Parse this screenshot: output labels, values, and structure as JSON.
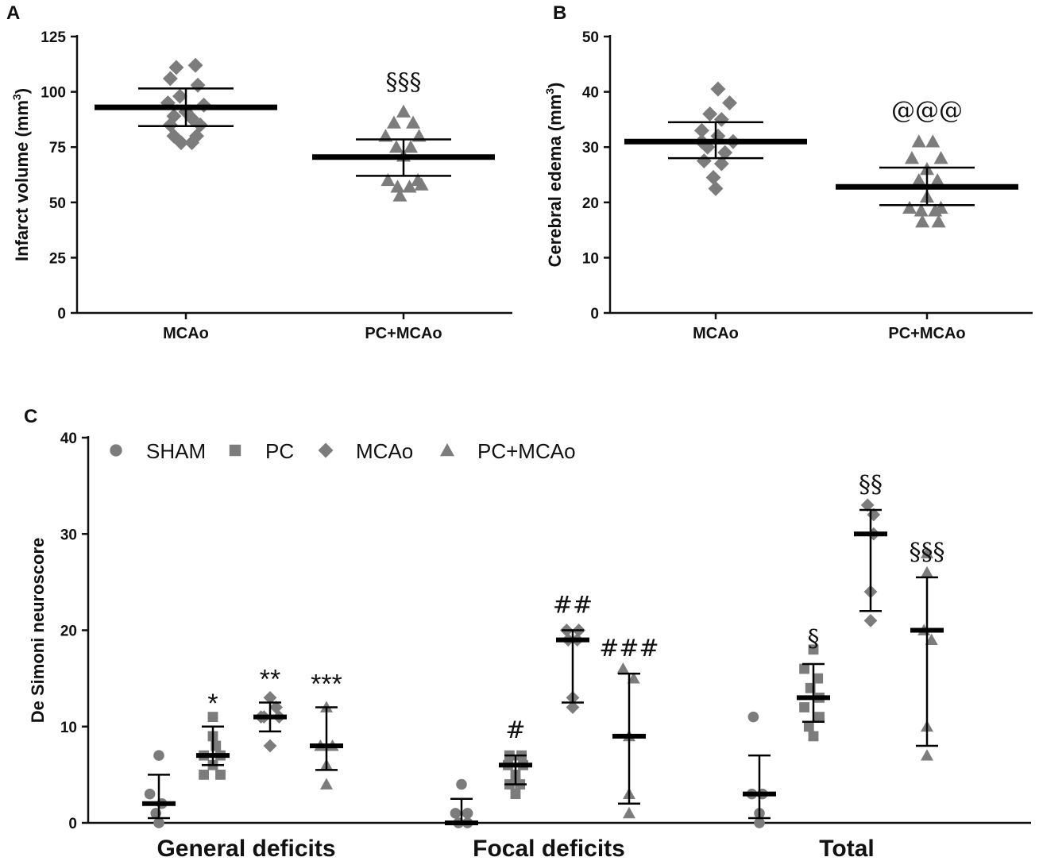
{
  "chart_data": [
    {
      "panel": "A",
      "type": "scatter",
      "ylabel": "Infarct volume (mm",
      "ylabel_sup": "3",
      "ylabel_close": ")",
      "ylim": [
        0,
        125
      ],
      "yticks": [
        0,
        25,
        50,
        75,
        100,
        125
      ],
      "categories": [
        "MCAo",
        "PC+MCAo"
      ],
      "groups": [
        {
          "name": "MCAo",
          "marker": "diamond",
          "mean": 93,
          "upper": 101.5,
          "lower": 84.5,
          "points": [
            [
              -0.08,
              111
            ],
            [
              0.08,
              112
            ],
            [
              -0.13,
              106
            ],
            [
              0.1,
              103
            ],
            [
              -0.05,
              98
            ],
            [
              -0.15,
              95
            ],
            [
              0.15,
              94
            ],
            [
              0,
              91
            ],
            [
              -0.1,
              89
            ],
            [
              0.05,
              88
            ],
            [
              -0.13,
              85
            ],
            [
              0.12,
              85
            ],
            [
              -0.1,
              80
            ],
            [
              0.09,
              80
            ],
            [
              -0.04,
              77
            ],
            [
              0.05,
              77
            ]
          ],
          "annotation": ""
        },
        {
          "name": "PC+MCAo",
          "marker": "triangle",
          "mean": 70.5,
          "upper": 78.5,
          "lower": 62,
          "points": [
            [
              0,
              91
            ],
            [
              -0.08,
              86
            ],
            [
              0.08,
              86
            ],
            [
              -0.15,
              80
            ],
            [
              0.13,
              80
            ],
            [
              -0.06,
              75
            ],
            [
              0.06,
              75
            ],
            [
              0,
              71
            ],
            [
              -0.13,
              60
            ],
            [
              0.12,
              60
            ],
            [
              -0.05,
              57
            ],
            [
              0.05,
              57
            ],
            [
              -0.03,
              53
            ],
            [
              0.15,
              58
            ]
          ],
          "annotation": "§§§"
        }
      ]
    },
    {
      "panel": "B",
      "type": "scatter",
      "ylabel": "Cerebral edema (mm",
      "ylabel_sup": "3",
      "ylabel_close": ")",
      "ylim": [
        0,
        50
      ],
      "yticks": [
        0,
        10,
        20,
        30,
        40,
        50
      ],
      "categories": [
        "MCAo",
        "PC+MCAo"
      ],
      "groups": [
        {
          "name": "MCAo",
          "marker": "diamond",
          "mean": 31,
          "upper": 34.5,
          "lower": 28,
          "points": [
            [
              0.02,
              40.5
            ],
            [
              0.12,
              38
            ],
            [
              -0.05,
              36
            ],
            [
              0.05,
              35
            ],
            [
              -0.12,
              33
            ],
            [
              0.02,
              32
            ],
            [
              -0.12,
              31
            ],
            [
              0.15,
              31
            ],
            [
              -0.07,
              30
            ],
            [
              0.08,
              29
            ],
            [
              -0.1,
              27.5
            ],
            [
              0.05,
              27
            ],
            [
              0,
              22.5
            ],
            [
              -0.02,
              24.5
            ]
          ],
          "annotation": ""
        },
        {
          "name": "PC+MCAo",
          "marker": "triangle",
          "mean": 22.8,
          "upper": 26.3,
          "lower": 19.5,
          "points": [
            [
              -0.07,
              31
            ],
            [
              0.05,
              31
            ],
            [
              -0.13,
              28
            ],
            [
              0.12,
              28
            ],
            [
              0,
              26
            ],
            [
              -0.07,
              24
            ],
            [
              0.09,
              24
            ],
            [
              0,
              21
            ],
            [
              -0.15,
              19
            ],
            [
              0.12,
              19
            ],
            [
              -0.05,
              18.5
            ],
            [
              0.07,
              18.5
            ],
            [
              -0.04,
              16.5
            ],
            [
              0.1,
              16.5
            ]
          ],
          "annotation": "@@@"
        }
      ]
    },
    {
      "panel": "C",
      "type": "scatter",
      "ylabel": "De Simoni neuroscore",
      "ylim": [
        0,
        40
      ],
      "yticks": [
        0,
        10,
        20,
        30,
        40
      ],
      "categories": [
        "General deficits",
        "Focal deficits",
        "Total"
      ],
      "legend": [
        {
          "name": "SHAM",
          "marker": "circle"
        },
        {
          "name": "PC",
          "marker": "square"
        },
        {
          "name": "MCAo",
          "marker": "diamond"
        },
        {
          "name": "PC+MCAo",
          "marker": "triangle"
        }
      ],
      "groups": [
        {
          "category": "General deficits",
          "series": "SHAM",
          "marker": "circle",
          "median": 2,
          "upper": 5,
          "lower": 0.5,
          "points": [
            [
              0,
              7
            ],
            [
              -0.3,
              3
            ],
            [
              0.1,
              2
            ],
            [
              -0.1,
              1
            ],
            [
              0,
              0
            ]
          ],
          "annotation": ""
        },
        {
          "category": "General deficits",
          "series": "PC",
          "marker": "square",
          "median": 7,
          "upper": 10,
          "lower": 6,
          "points": [
            [
              0,
              9
            ],
            [
              0.1,
              8
            ],
            [
              -0.3,
              7
            ],
            [
              0.25,
              7
            ],
            [
              0,
              6
            ],
            [
              -0.3,
              5
            ],
            [
              0.25,
              5
            ],
            [
              0,
              11
            ]
          ],
          "annotation": "*"
        },
        {
          "category": "General deficits",
          "series": "MCAo",
          "marker": "diamond",
          "median": 11,
          "upper": 12.5,
          "lower": 9.5,
          "points": [
            [
              0,
              13
            ],
            [
              -0.2,
              11
            ],
            [
              0.2,
              12
            ],
            [
              0.3,
              11
            ],
            [
              -0.3,
              11
            ],
            [
              0,
              8
            ]
          ],
          "annotation": "**"
        },
        {
          "category": "General deficits",
          "series": "PC+MCAo",
          "marker": "triangle",
          "median": 8,
          "upper": 12,
          "lower": 5.5,
          "points": [
            [
              0,
              12
            ],
            [
              -0.2,
              8
            ],
            [
              0.2,
              8
            ],
            [
              0,
              6
            ],
            [
              0,
              4
            ]
          ],
          "annotation": "***"
        },
        {
          "category": "Focal deficits",
          "series": "SHAM",
          "marker": "circle",
          "median": 0,
          "upper": 2.5,
          "lower": 0,
          "points": [
            [
              0,
              4
            ],
            [
              -0.2,
              1
            ],
            [
              0.2,
              1
            ],
            [
              -0.1,
              0
            ],
            [
              0.2,
              0
            ]
          ],
          "annotation": ""
        },
        {
          "category": "Focal deficits",
          "series": "PC",
          "marker": "square",
          "median": 6,
          "upper": 7,
          "lower": 4,
          "points": [
            [
              -0.2,
              7
            ],
            [
              0.2,
              7
            ],
            [
              -0.25,
              6
            ],
            [
              0.25,
              6
            ],
            [
              0,
              5
            ],
            [
              -0.2,
              4
            ],
            [
              0.15,
              4
            ],
            [
              0,
              3
            ]
          ],
          "annotation": "#"
        },
        {
          "category": "Focal deficits",
          "series": "MCAo",
          "marker": "diamond",
          "median": 19,
          "upper": 20,
          "lower": 12.5,
          "points": [
            [
              -0.2,
              20
            ],
            [
              0.2,
              20
            ],
            [
              -0.15,
              19
            ],
            [
              0.15,
              19
            ],
            [
              0,
              13
            ],
            [
              0,
              12
            ]
          ],
          "annotation": "##"
        },
        {
          "category": "Focal deficits",
          "series": "PC+MCAo",
          "marker": "triangle",
          "median": 9,
          "upper": 15.5,
          "lower": 2,
          "points": [
            [
              -0.2,
              16
            ],
            [
              0.15,
              15
            ],
            [
              0,
              9
            ],
            [
              0,
              3
            ],
            [
              0,
              1
            ]
          ],
          "annotation": "###"
        },
        {
          "category": "Total",
          "series": "SHAM",
          "marker": "circle",
          "median": 3,
          "upper": 7,
          "lower": 0.5,
          "points": [
            [
              -0.2,
              11
            ],
            [
              -0.25,
              3
            ],
            [
              0.1,
              3
            ],
            [
              0,
              1
            ],
            [
              0,
              0
            ]
          ],
          "annotation": ""
        },
        {
          "category": "Total",
          "series": "PC",
          "marker": "square",
          "median": 13,
          "upper": 16.5,
          "lower": 10.5,
          "points": [
            [
              0,
              18
            ],
            [
              -0.3,
              16
            ],
            [
              0.15,
              15
            ],
            [
              -0.1,
              14
            ],
            [
              0.2,
              13
            ],
            [
              -0.3,
              12
            ],
            [
              0.2,
              11
            ],
            [
              -0.15,
              10
            ],
            [
              0,
              9
            ]
          ],
          "annotation": "§"
        },
        {
          "category": "Total",
          "series": "MCAo",
          "marker": "diamond",
          "median": 30,
          "upper": 32.5,
          "lower": 22,
          "points": [
            [
              -0.1,
              33
            ],
            [
              0.1,
              32
            ],
            [
              0.1,
              30
            ],
            [
              0,
              24
            ],
            [
              0,
              21
            ]
          ],
          "annotation": "§§"
        },
        {
          "category": "Total",
          "series": "PC+MCAo",
          "marker": "triangle",
          "median": 20,
          "upper": 25.5,
          "lower": 8,
          "points": [
            [
              0,
              28
            ],
            [
              0,
              26
            ],
            [
              -0.1,
              20
            ],
            [
              0.15,
              19
            ],
            [
              0,
              10
            ],
            [
              0,
              7
            ]
          ],
          "annotation": "§§§"
        }
      ]
    }
  ]
}
